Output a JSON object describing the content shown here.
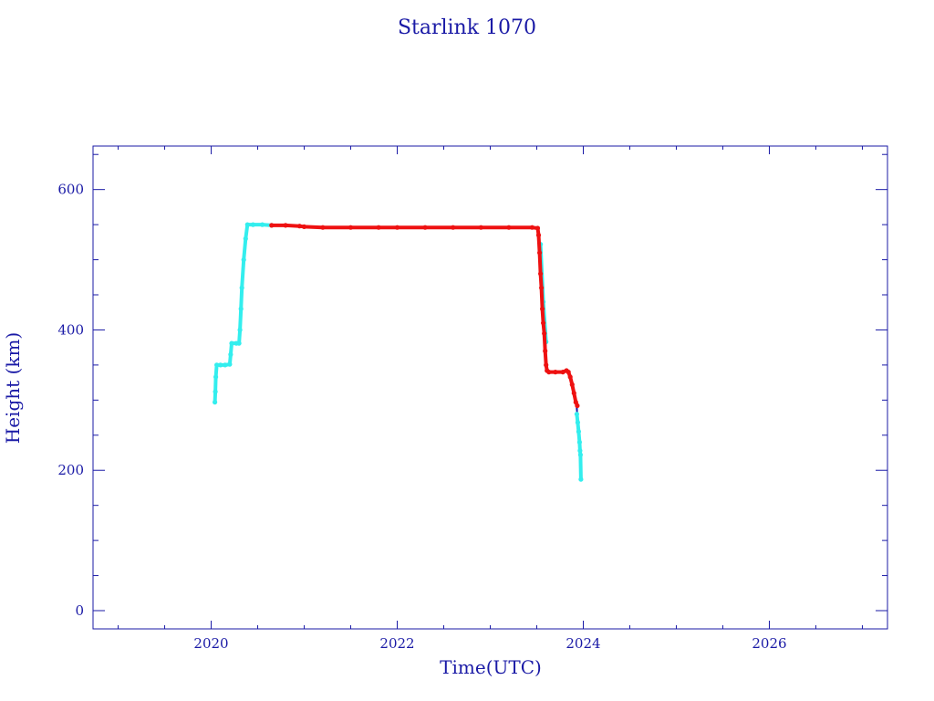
{
  "chart_data": {
    "type": "scatter",
    "title": "Starlink 1070",
    "xlabel": "Time(UTC)",
    "ylabel": "Height (km)",
    "xlim": [
      2018.73,
      2027.27
    ],
    "ylim": [
      -26,
      662
    ],
    "x_ticks": [
      2020,
      2022,
      2024,
      2026
    ],
    "x_tick_labels": [
      "2020",
      "2022",
      "2024",
      "2026"
    ],
    "y_ticks": [
      0,
      200,
      400,
      600
    ],
    "y_tick_labels": [
      "0",
      "200",
      "400",
      "600"
    ],
    "grid": false,
    "colors": {
      "axis": "#1a1aa6",
      "series_a": "#33eeee",
      "series_b": "#ee1111",
      "line": "#1a1aa6"
    },
    "series": [
      {
        "color": "#33eeee",
        "points": [
          [
            2020.04,
            297
          ],
          [
            2020.045,
            312
          ],
          [
            2020.05,
            333
          ],
          [
            2020.06,
            350
          ],
          [
            2020.1,
            350
          ],
          [
            2020.15,
            350
          ],
          [
            2020.2,
            351
          ],
          [
            2020.21,
            365
          ],
          [
            2020.22,
            381
          ],
          [
            2020.27,
            381
          ],
          [
            2020.3,
            381
          ],
          [
            2020.31,
            400
          ],
          [
            2020.32,
            430
          ],
          [
            2020.33,
            460
          ],
          [
            2020.35,
            500
          ],
          [
            2020.37,
            530
          ],
          [
            2020.39,
            550
          ],
          [
            2020.45,
            550
          ],
          [
            2020.55,
            550
          ],
          [
            2020.65,
            549
          ],
          [
            2023.54,
            522
          ],
          [
            2023.57,
            440
          ],
          [
            2023.6,
            383
          ],
          [
            2023.93,
            280
          ],
          [
            2023.94,
            268
          ],
          [
            2023.95,
            255
          ],
          [
            2023.96,
            240
          ],
          [
            2023.965,
            228
          ],
          [
            2023.97,
            222
          ],
          [
            2023.975,
            187
          ]
        ]
      },
      {
        "color": "#ee1111",
        "points": [
          [
            2020.65,
            549
          ],
          [
            2020.8,
            549
          ],
          [
            2020.95,
            548
          ],
          [
            2021.0,
            547
          ],
          [
            2021.2,
            546
          ],
          [
            2021.5,
            546
          ],
          [
            2021.8,
            546
          ],
          [
            2022.0,
            546
          ],
          [
            2022.3,
            546
          ],
          [
            2022.6,
            546
          ],
          [
            2022.9,
            546
          ],
          [
            2023.2,
            546
          ],
          [
            2023.45,
            546
          ],
          [
            2023.51,
            545
          ],
          [
            2023.52,
            535
          ],
          [
            2023.53,
            510
          ],
          [
            2023.54,
            480
          ],
          [
            2023.55,
            460
          ],
          [
            2023.56,
            430
          ],
          [
            2023.57,
            410
          ],
          [
            2023.58,
            395
          ],
          [
            2023.59,
            370
          ],
          [
            2023.6,
            350
          ],
          [
            2023.61,
            342
          ],
          [
            2023.63,
            340
          ],
          [
            2023.7,
            340
          ],
          [
            2023.78,
            340
          ],
          [
            2023.82,
            342
          ],
          [
            2023.84,
            340
          ],
          [
            2023.86,
            333
          ],
          [
            2023.88,
            322
          ],
          [
            2023.9,
            310
          ],
          [
            2023.92,
            297
          ],
          [
            2023.935,
            292
          ]
        ]
      }
    ]
  }
}
